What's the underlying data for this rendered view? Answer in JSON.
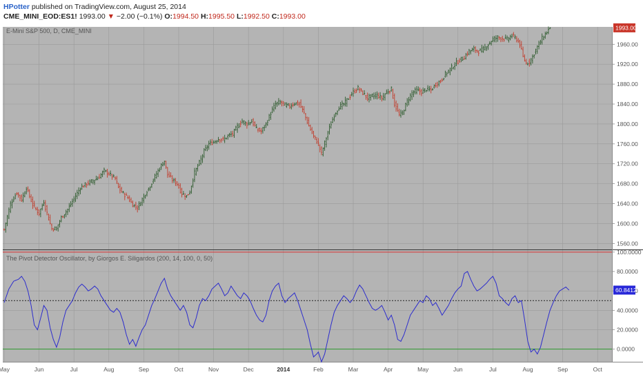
{
  "header": {
    "author": "HPotter",
    "published_text": "published on TradingView.com, August 25, 2014",
    "symbol": "CME_MINI_EOD:ES1!",
    "last": "1993.00",
    "change": "−2.00 (−0.1%)",
    "open_label": "O:",
    "open": "1994.50",
    "high_label": "H:",
    "high": "1995.50",
    "low_label": "L:",
    "low": "1992.50",
    "close_label": "C:",
    "close": "1993.00"
  },
  "chart_data": [
    {
      "type": "ohlc",
      "title": "E-Mini S&P 500, D, CME_MINI",
      "last_price_label": "1993.00",
      "y_ticks": [
        "1960.00",
        "1920.00",
        "1880.00",
        "1840.00",
        "1800.00",
        "1760.00",
        "1720.00",
        "1680.00",
        "1640.00",
        "1600.00",
        "1560.00"
      ],
      "y_tick_values": [
        1960,
        1920,
        1880,
        1840,
        1800,
        1760,
        1720,
        1680,
        1640,
        1600,
        1560
      ],
      "ylim": [
        1548,
        1995
      ],
      "x_ticks": [
        "May",
        "Jun",
        "Jul",
        "Aug",
        "Sep",
        "Oct",
        "Nov",
        "Dec",
        "2014",
        "Feb",
        "Mar",
        "Apr",
        "May",
        "Jun",
        "Jul",
        "Aug",
        "Sep",
        "Oct"
      ],
      "x_tick_bars": [
        0,
        22,
        44,
        66,
        88,
        110,
        132,
        154,
        176,
        198,
        220,
        242,
        264,
        286,
        308,
        330,
        352,
        374
      ],
      "close_anchors": [
        [
          0,
          1588
        ],
        [
          4,
          1640
        ],
        [
          8,
          1662
        ],
        [
          11,
          1648
        ],
        [
          14,
          1672
        ],
        [
          18,
          1638
        ],
        [
          22,
          1620
        ],
        [
          25,
          1644
        ],
        [
          28,
          1610
        ],
        [
          30,
          1590
        ],
        [
          33,
          1590
        ],
        [
          36,
          1612
        ],
        [
          40,
          1628
        ],
        [
          44,
          1650
        ],
        [
          48,
          1672
        ],
        [
          52,
          1680
        ],
        [
          56,
          1686
        ],
        [
          60,
          1694
        ],
        [
          63,
          1706
        ],
        [
          66,
          1700
        ],
        [
          70,
          1690
        ],
        [
          72,
          1672
        ],
        [
          75,
          1660
        ],
        [
          78,
          1652
        ],
        [
          81,
          1638
        ],
        [
          84,
          1632
        ],
        [
          86,
          1643
        ],
        [
          89,
          1660
        ],
        [
          92,
          1676
        ],
        [
          95,
          1694
        ],
        [
          98,
          1712
        ],
        [
          101,
          1726
        ],
        [
          103,
          1698
        ],
        [
          106,
          1688
        ],
        [
          109,
          1680
        ],
        [
          112,
          1660
        ],
        [
          115,
          1655
        ],
        [
          117,
          1664
        ],
        [
          120,
          1702
        ],
        [
          123,
          1722
        ],
        [
          126,
          1745
        ],
        [
          129,
          1760
        ],
        [
          132,
          1764
        ],
        [
          135,
          1770
        ],
        [
          138,
          1768
        ],
        [
          141,
          1776
        ],
        [
          144,
          1780
        ],
        [
          147,
          1795
        ],
        [
          150,
          1806
        ],
        [
          153,
          1800
        ],
        [
          156,
          1806
        ],
        [
          159,
          1790
        ],
        [
          162,
          1785
        ],
        [
          165,
          1800
        ],
        [
          168,
          1822
        ],
        [
          171,
          1840
        ],
        [
          174,
          1844
        ],
        [
          177,
          1838
        ],
        [
          180,
          1836
        ],
        [
          183,
          1842
        ],
        [
          186,
          1840
        ],
        [
          189,
          1822
        ],
        [
          192,
          1796
        ],
        [
          195,
          1775
        ],
        [
          198,
          1760
        ],
        [
          200,
          1740
        ],
        [
          202,
          1762
        ],
        [
          205,
          1792
        ],
        [
          208,
          1818
        ],
        [
          211,
          1834
        ],
        [
          214,
          1840
        ],
        [
          217,
          1852
        ],
        [
          220,
          1864
        ],
        [
          223,
          1872
        ],
        [
          226,
          1862
        ],
        [
          229,
          1852
        ],
        [
          232,
          1856
        ],
        [
          235,
          1858
        ],
        [
          238,
          1852
        ],
        [
          241,
          1864
        ],
        [
          244,
          1870
        ],
        [
          246,
          1840
        ],
        [
          249,
          1818
        ],
        [
          251,
          1822
        ],
        [
          254,
          1846
        ],
        [
          257,
          1862
        ],
        [
          260,
          1868
        ],
        [
          263,
          1864
        ],
        [
          266,
          1870
        ],
        [
          269,
          1868
        ],
        [
          272,
          1880
        ],
        [
          275,
          1886
        ],
        [
          278,
          1900
        ],
        [
          281,
          1910
        ],
        [
          284,
          1920
        ],
        [
          287,
          1928
        ],
        [
          290,
          1934
        ],
        [
          293,
          1946
        ],
        [
          296,
          1950
        ],
        [
          299,
          1946
        ],
        [
          302,
          1950
        ],
        [
          305,
          1960
        ],
        [
          308,
          1970
        ],
        [
          311,
          1974
        ],
        [
          314,
          1972
        ],
        [
          317,
          1970
        ],
        [
          320,
          1978
        ],
        [
          323,
          1970
        ],
        [
          325,
          1960
        ],
        [
          327,
          1935
        ],
        [
          329,
          1922
        ],
        [
          331,
          1925
        ],
        [
          333,
          1935
        ],
        [
          336,
          1955
        ],
        [
          339,
          1972
        ],
        [
          342,
          1985
        ],
        [
          344,
          1993
        ]
      ]
    },
    {
      "type": "line",
      "title": "The Pivot Detector Oscillator, by Giorgos E. Siligardos (200, 14, 100, 0, 50)",
      "last_value_label": "60.8412",
      "y_ticks": [
        "100.0000",
        "80.0000",
        "60.0000",
        "40.0000",
        "20.0000",
        "0.0000"
      ],
      "y_tick_values": [
        100,
        80,
        60,
        40,
        20,
        0
      ],
      "ylim": [
        -13,
        102
      ],
      "reference_lines": [
        100,
        50,
        0
      ],
      "anchors": [
        [
          0,
          48
        ],
        [
          3,
          62
        ],
        [
          6,
          70
        ],
        [
          9,
          72
        ],
        [
          11,
          75
        ],
        [
          13,
          70
        ],
        [
          15,
          60
        ],
        [
          17,
          45
        ],
        [
          19,
          25
        ],
        [
          21,
          20
        ],
        [
          23,
          32
        ],
        [
          25,
          45
        ],
        [
          27,
          40
        ],
        [
          29,
          22
        ],
        [
          31,
          10
        ],
        [
          33,
          2
        ],
        [
          35,
          12
        ],
        [
          37,
          28
        ],
        [
          39,
          40
        ],
        [
          41,
          45
        ],
        [
          43,
          50
        ],
        [
          45,
          58
        ],
        [
          47,
          64
        ],
        [
          49,
          67
        ],
        [
          51,
          64
        ],
        [
          53,
          60
        ],
        [
          55,
          62
        ],
        [
          57,
          65
        ],
        [
          59,
          62
        ],
        [
          61,
          55
        ],
        [
          63,
          50
        ],
        [
          65,
          45
        ],
        [
          67,
          40
        ],
        [
          69,
          38
        ],
        [
          71,
          42
        ],
        [
          73,
          38
        ],
        [
          75,
          28
        ],
        [
          77,
          15
        ],
        [
          79,
          5
        ],
        [
          81,
          10
        ],
        [
          83,
          3
        ],
        [
          85,
          12
        ],
        [
          87,
          20
        ],
        [
          89,
          25
        ],
        [
          91,
          35
        ],
        [
          93,
          45
        ],
        [
          95,
          52
        ],
        [
          97,
          60
        ],
        [
          99,
          68
        ],
        [
          101,
          73
        ],
        [
          103,
          62
        ],
        [
          105,
          55
        ],
        [
          107,
          50
        ],
        [
          109,
          45
        ],
        [
          111,
          40
        ],
        [
          113,
          45
        ],
        [
          115,
          38
        ],
        [
          117,
          25
        ],
        [
          119,
          22
        ],
        [
          121,
          32
        ],
        [
          123,
          45
        ],
        [
          125,
          52
        ],
        [
          127,
          50
        ],
        [
          129,
          55
        ],
        [
          131,
          62
        ],
        [
          133,
          65
        ],
        [
          135,
          68
        ],
        [
          137,
          62
        ],
        [
          139,
          55
        ],
        [
          141,
          58
        ],
        [
          143,
          65
        ],
        [
          145,
          60
        ],
        [
          147,
          55
        ],
        [
          149,
          52
        ],
        [
          151,
          58
        ],
        [
          153,
          55
        ],
        [
          155,
          50
        ],
        [
          157,
          42
        ],
        [
          159,
          35
        ],
        [
          161,
          30
        ],
        [
          163,
          28
        ],
        [
          165,
          35
        ],
        [
          167,
          50
        ],
        [
          169,
          60
        ],
        [
          171,
          65
        ],
        [
          173,
          68
        ],
        [
          175,
          55
        ],
        [
          177,
          48
        ],
        [
          179,
          52
        ],
        [
          181,
          55
        ],
        [
          183,
          58
        ],
        [
          185,
          50
        ],
        [
          187,
          40
        ],
        [
          189,
          30
        ],
        [
          191,
          20
        ],
        [
          193,
          5
        ],
        [
          195,
          -8
        ],
        [
          197,
          -5
        ],
        [
          198,
          -3
        ],
        [
          200,
          -13
        ],
        [
          202,
          -5
        ],
        [
          204,
          10
        ],
        [
          206,
          25
        ],
        [
          208,
          38
        ],
        [
          210,
          45
        ],
        [
          212,
          50
        ],
        [
          214,
          55
        ],
        [
          216,
          52
        ],
        [
          218,
          48
        ],
        [
          220,
          52
        ],
        [
          222,
          60
        ],
        [
          224,
          66
        ],
        [
          226,
          62
        ],
        [
          228,
          55
        ],
        [
          230,
          48
        ],
        [
          232,
          42
        ],
        [
          234,
          40
        ],
        [
          236,
          42
        ],
        [
          238,
          45
        ],
        [
          240,
          38
        ],
        [
          242,
          30
        ],
        [
          244,
          35
        ],
        [
          246,
          25
        ],
        [
          248,
          10
        ],
        [
          250,
          8
        ],
        [
          252,
          15
        ],
        [
          254,
          25
        ],
        [
          256,
          35
        ],
        [
          258,
          40
        ],
        [
          260,
          45
        ],
        [
          262,
          50
        ],
        [
          264,
          48
        ],
        [
          266,
          55
        ],
        [
          268,
          52
        ],
        [
          270,
          45
        ],
        [
          272,
          48
        ],
        [
          274,
          42
        ],
        [
          276,
          35
        ],
        [
          278,
          40
        ],
        [
          280,
          45
        ],
        [
          282,
          52
        ],
        [
          284,
          58
        ],
        [
          286,
          62
        ],
        [
          288,
          65
        ],
        [
          290,
          78
        ],
        [
          292,
          80
        ],
        [
          294,
          72
        ],
        [
          296,
          65
        ],
        [
          298,
          60
        ],
        [
          300,
          62
        ],
        [
          302,
          65
        ],
        [
          304,
          68
        ],
        [
          306,
          72
        ],
        [
          308,
          75
        ],
        [
          310,
          68
        ],
        [
          312,
          55
        ],
        [
          314,
          52
        ],
        [
          316,
          48
        ],
        [
          318,
          45
        ],
        [
          320,
          52
        ],
        [
          322,
          55
        ],
        [
          324,
          48
        ],
        [
          326,
          50
        ],
        [
          328,
          30
        ],
        [
          330,
          8
        ],
        [
          332,
          -3
        ],
        [
          334,
          0
        ],
        [
          336,
          -5
        ],
        [
          338,
          2
        ],
        [
          340,
          15
        ],
        [
          342,
          28
        ],
        [
          344,
          40
        ],
        [
          346,
          48
        ],
        [
          348,
          55
        ],
        [
          350,
          60
        ],
        [
          352,
          62
        ],
        [
          354,
          64
        ],
        [
          356,
          60.8412
        ]
      ]
    }
  ],
  "colors": {
    "background": "#b4b4b4",
    "frame": "#ffffff",
    "grid": "#9a9a9a",
    "up_bar": "#2c5a2c",
    "down_bar": "#c23b2a",
    "oscillator": "#2c2ccd",
    "ref_high": "#d63030",
    "ref_mid": "#222222",
    "ref_low": "#2c9a2c",
    "price_tag": "#c9362a",
    "osc_tag": "#2828d8"
  }
}
